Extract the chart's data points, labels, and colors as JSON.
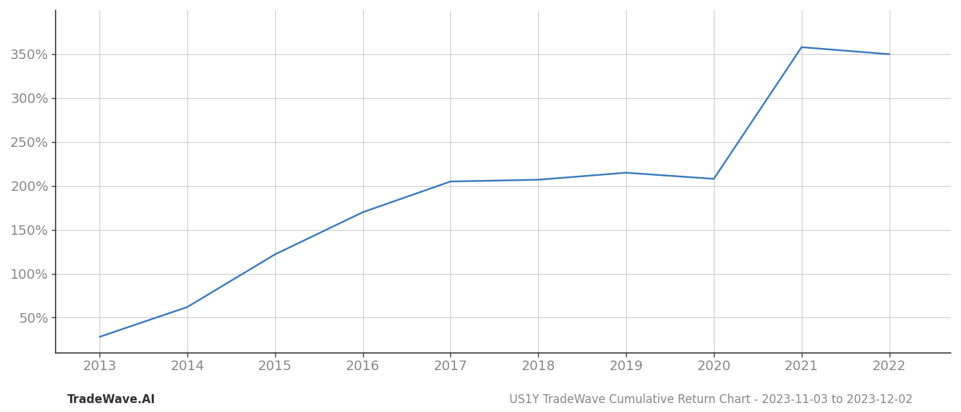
{
  "x_years": [
    2013,
    2014,
    2015,
    2016,
    2017,
    2018,
    2019,
    2020,
    2021,
    2022
  ],
  "y_values": [
    28,
    62,
    122,
    170,
    205,
    207,
    215,
    208,
    358,
    350
  ],
  "line_color": "#3a7abf",
  "line_width": 1.8,
  "background_color": "#ffffff",
  "grid_color": "#cccccc",
  "ylabel_values": [
    50,
    100,
    150,
    200,
    250,
    300,
    350
  ],
  "x_tick_labels": [
    "2013",
    "2014",
    "2015",
    "2016",
    "2017",
    "2018",
    "2019",
    "2020",
    "2021",
    "2022"
  ],
  "footer_left": "TradeWave.AI",
  "footer_right": "US1Y TradeWave Cumulative Return Chart - 2023-11-03 to 2023-12-02",
  "tick_color": "#888888",
  "axis_color": "#333333",
  "font_size_ticks": 14,
  "font_size_footer": 12,
  "ylim": [
    10,
    400
  ],
  "xlim": [
    2012.5,
    2022.7
  ]
}
